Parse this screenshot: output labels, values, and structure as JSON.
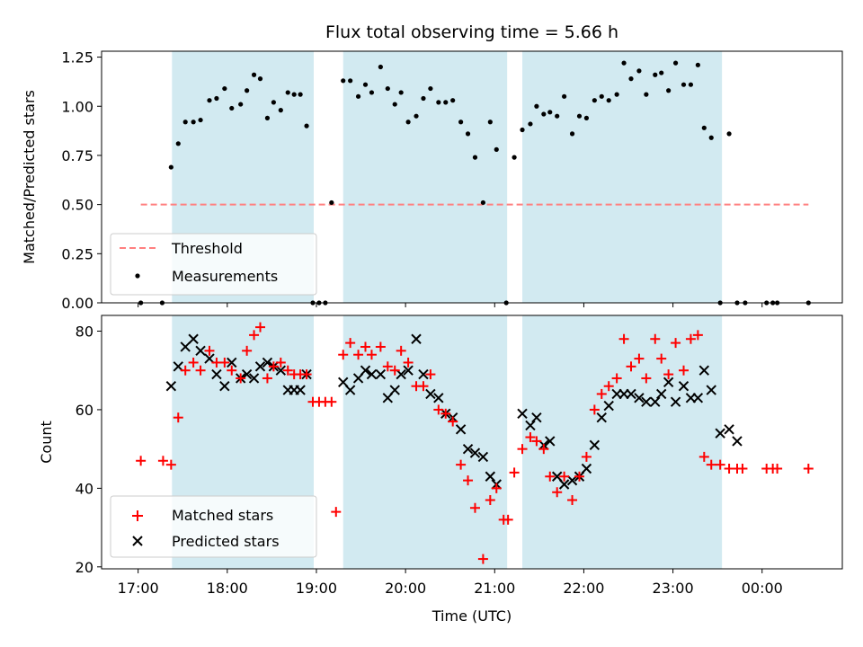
{
  "chart_data": [
    {
      "type": "scatter",
      "title": "Flux total observing time = 5.66 h",
      "xlabel": "",
      "ylabel": "Matched/Predicted stars",
      "xlim": [
        16.59,
        24.9
      ],
      "ylim": [
        0,
        1.28
      ],
      "yticks": [
        0.0,
        0.25,
        0.5,
        0.75,
        1.0,
        1.25
      ],
      "ytick_labels": [
        "0.00",
        "0.25",
        "0.50",
        "0.75",
        "1.00",
        "1.25"
      ],
      "xticks": [
        17,
        18,
        19,
        20,
        21,
        22,
        23,
        24
      ],
      "xtick_labels": [
        "",
        "",
        "",
        "",
        "",
        "",
        "",
        ""
      ],
      "shaded_intervals": [
        [
          17.38,
          18.97
        ],
        [
          19.3,
          21.14
        ],
        [
          21.31,
          23.55
        ]
      ],
      "shade_color": "#add8e6",
      "threshold": {
        "name": "Threshold",
        "x": [
          17.03,
          24.52
        ],
        "y": 0.5,
        "color": "#ff7f7f"
      },
      "series": [
        {
          "name": "Measurements",
          "color": "#000000",
          "x": [
            17.03,
            17.27,
            17.37,
            17.45,
            17.53,
            17.62,
            17.7,
            17.8,
            17.88,
            17.97,
            18.05,
            18.15,
            18.22,
            18.3,
            18.37,
            18.45,
            18.52,
            18.6,
            18.68,
            18.75,
            18.82,
            18.89,
            18.96,
            19.03,
            19.1,
            19.17,
            19.3,
            19.38,
            19.47,
            19.55,
            19.62,
            19.72,
            19.8,
            19.88,
            19.95,
            20.03,
            20.12,
            20.2,
            20.28,
            20.37,
            20.45,
            20.53,
            20.62,
            20.7,
            20.78,
            20.87,
            20.95,
            21.02,
            21.13,
            21.22,
            21.31,
            21.4,
            21.47,
            21.55,
            21.62,
            21.7,
            21.78,
            21.87,
            21.95,
            22.03,
            22.12,
            22.2,
            22.28,
            22.37,
            22.45,
            22.53,
            22.62,
            22.7,
            22.8,
            22.87,
            22.95,
            23.03,
            23.12,
            23.2,
            23.28,
            23.35,
            23.43,
            23.53,
            23.63,
            23.72,
            23.81,
            24.05,
            24.12,
            24.17,
            24.52
          ],
          "y": [
            0.0,
            0.0,
            0.69,
            0.81,
            0.92,
            0.92,
            0.93,
            1.03,
            1.04,
            1.09,
            0.99,
            1.01,
            1.08,
            1.16,
            1.14,
            0.94,
            1.02,
            0.98,
            1.07,
            1.06,
            1.06,
            0.9,
            0.0,
            0.0,
            0.0,
            0.51,
            1.13,
            1.13,
            1.05,
            1.11,
            1.07,
            1.2,
            1.09,
            1.01,
            1.07,
            0.92,
            0.95,
            1.04,
            1.09,
            1.02,
            1.02,
            1.03,
            0.92,
            0.86,
            0.74,
            0.51,
            0.92,
            0.78,
            0.0,
            0.74,
            0.88,
            0.91,
            1.0,
            0.96,
            0.97,
            0.95,
            1.05,
            0.86,
            0.95,
            0.94,
            1.03,
            1.05,
            1.03,
            1.06,
            1.22,
            1.14,
            1.18,
            1.06,
            1.16,
            1.17,
            1.08,
            1.22,
            1.11,
            1.11,
            1.21,
            0.89,
            0.84,
            0.0,
            0.86,
            0.0,
            0.0,
            0.0,
            0.0,
            0.0,
            0.0
          ]
        }
      ],
      "legend": [
        "Threshold",
        "Measurements"
      ],
      "legend_position": "lower-left",
      "grid": false
    },
    {
      "type": "scatter",
      "title": "",
      "xlabel": "Time (UTC)",
      "ylabel": "Count",
      "xlim": [
        16.59,
        24.9
      ],
      "ylim": [
        19.5,
        84.0
      ],
      "yticks": [
        20,
        40,
        60,
        80
      ],
      "ytick_labels": [
        "20",
        "40",
        "60",
        "80"
      ],
      "xticks": [
        17,
        18,
        19,
        20,
        21,
        22,
        23,
        24
      ],
      "xtick_labels": [
        "17:00",
        "18:00",
        "19:00",
        "20:00",
        "21:00",
        "22:00",
        "23:00",
        "00:00"
      ],
      "shaded_intervals": [
        [
          17.38,
          18.97
        ],
        [
          19.3,
          21.14
        ],
        [
          21.31,
          23.55
        ]
      ],
      "shade_color": "#add8e6",
      "series": [
        {
          "name": "Matched stars",
          "marker": "plus",
          "color": "#ff0000",
          "x": [
            17.03,
            17.28,
            17.37,
            17.45,
            17.53,
            17.62,
            17.7,
            17.8,
            17.88,
            17.97,
            18.05,
            18.15,
            18.22,
            18.3,
            18.37,
            18.45,
            18.52,
            18.6,
            18.68,
            18.75,
            18.82,
            18.89,
            18.96,
            19.03,
            19.1,
            19.17,
            19.22,
            19.3,
            19.38,
            19.47,
            19.55,
            19.62,
            19.72,
            19.8,
            19.88,
            19.95,
            20.03,
            20.12,
            20.2,
            20.28,
            20.37,
            20.45,
            20.53,
            20.62,
            20.7,
            20.78,
            20.87,
            20.95,
            21.02,
            21.1,
            21.15,
            21.22,
            21.31,
            21.4,
            21.47,
            21.55,
            21.62,
            21.7,
            21.78,
            21.87,
            21.95,
            22.03,
            22.12,
            22.2,
            22.28,
            22.37,
            22.45,
            22.53,
            22.62,
            22.7,
            22.8,
            22.87,
            22.95,
            23.03,
            23.12,
            23.2,
            23.28,
            23.35,
            23.43,
            23.53,
            23.63,
            23.72,
            23.78,
            24.05,
            24.12,
            24.17,
            24.52
          ],
          "y": [
            47,
            47,
            46,
            58,
            70,
            72,
            70,
            75,
            72,
            72,
            70,
            68,
            75,
            79,
            81,
            68,
            71,
            72,
            70,
            69,
            69,
            69,
            62,
            62,
            62,
            62,
            34,
            74,
            77,
            74,
            76,
            74,
            76,
            71,
            70,
            75,
            72,
            66,
            66,
            69,
            60,
            59,
            57,
            46,
            42,
            35,
            22,
            37,
            40,
            32,
            32,
            44,
            50,
            53,
            52,
            50,
            43,
            39,
            43,
            37,
            43,
            48,
            60,
            64,
            66,
            68,
            78,
            71,
            73,
            68,
            78,
            73,
            69,
            77,
            70,
            78,
            79,
            48,
            46,
            46,
            45,
            45,
            45,
            45,
            45,
            45,
            45
          ]
        },
        {
          "name": "Predicted stars",
          "marker": "x",
          "color": "#000000",
          "x": [
            17.37,
            17.45,
            17.53,
            17.62,
            17.7,
            17.8,
            17.88,
            17.97,
            18.05,
            18.15,
            18.22,
            18.3,
            18.37,
            18.45,
            18.52,
            18.6,
            18.68,
            18.75,
            18.82,
            18.89,
            19.3,
            19.38,
            19.47,
            19.55,
            19.62,
            19.72,
            19.8,
            19.88,
            19.95,
            20.03,
            20.12,
            20.2,
            20.28,
            20.37,
            20.45,
            20.53,
            20.62,
            20.7,
            20.78,
            20.87,
            20.95,
            21.02,
            21.31,
            21.4,
            21.47,
            21.55,
            21.62,
            21.7,
            21.78,
            21.87,
            21.95,
            22.03,
            22.12,
            22.2,
            22.28,
            22.37,
            22.45,
            22.53,
            22.62,
            22.7,
            22.8,
            22.87,
            22.95,
            23.03,
            23.12,
            23.2,
            23.28,
            23.35,
            23.43,
            23.53,
            23.63,
            23.72
          ],
          "y": [
            66,
            71,
            76,
            78,
            75,
            73,
            69,
            66,
            72,
            68,
            69,
            68,
            71,
            72,
            71,
            70,
            65,
            65,
            65,
            69,
            67,
            65,
            68,
            70,
            69,
            69,
            63,
            65,
            69,
            70,
            78,
            69,
            64,
            63,
            59,
            58,
            55,
            50,
            49,
            48,
            43,
            41,
            59,
            56,
            58,
            51,
            52,
            43,
            41,
            42,
            43,
            45,
            51,
            58,
            61,
            64,
            64,
            64,
            63,
            62,
            62,
            64,
            67,
            62,
            66,
            63,
            63,
            70,
            65,
            54,
            55,
            52
          ]
        }
      ],
      "legend": [
        "Matched stars",
        "Predicted stars"
      ],
      "legend_position": "lower-left",
      "grid": false
    }
  ]
}
